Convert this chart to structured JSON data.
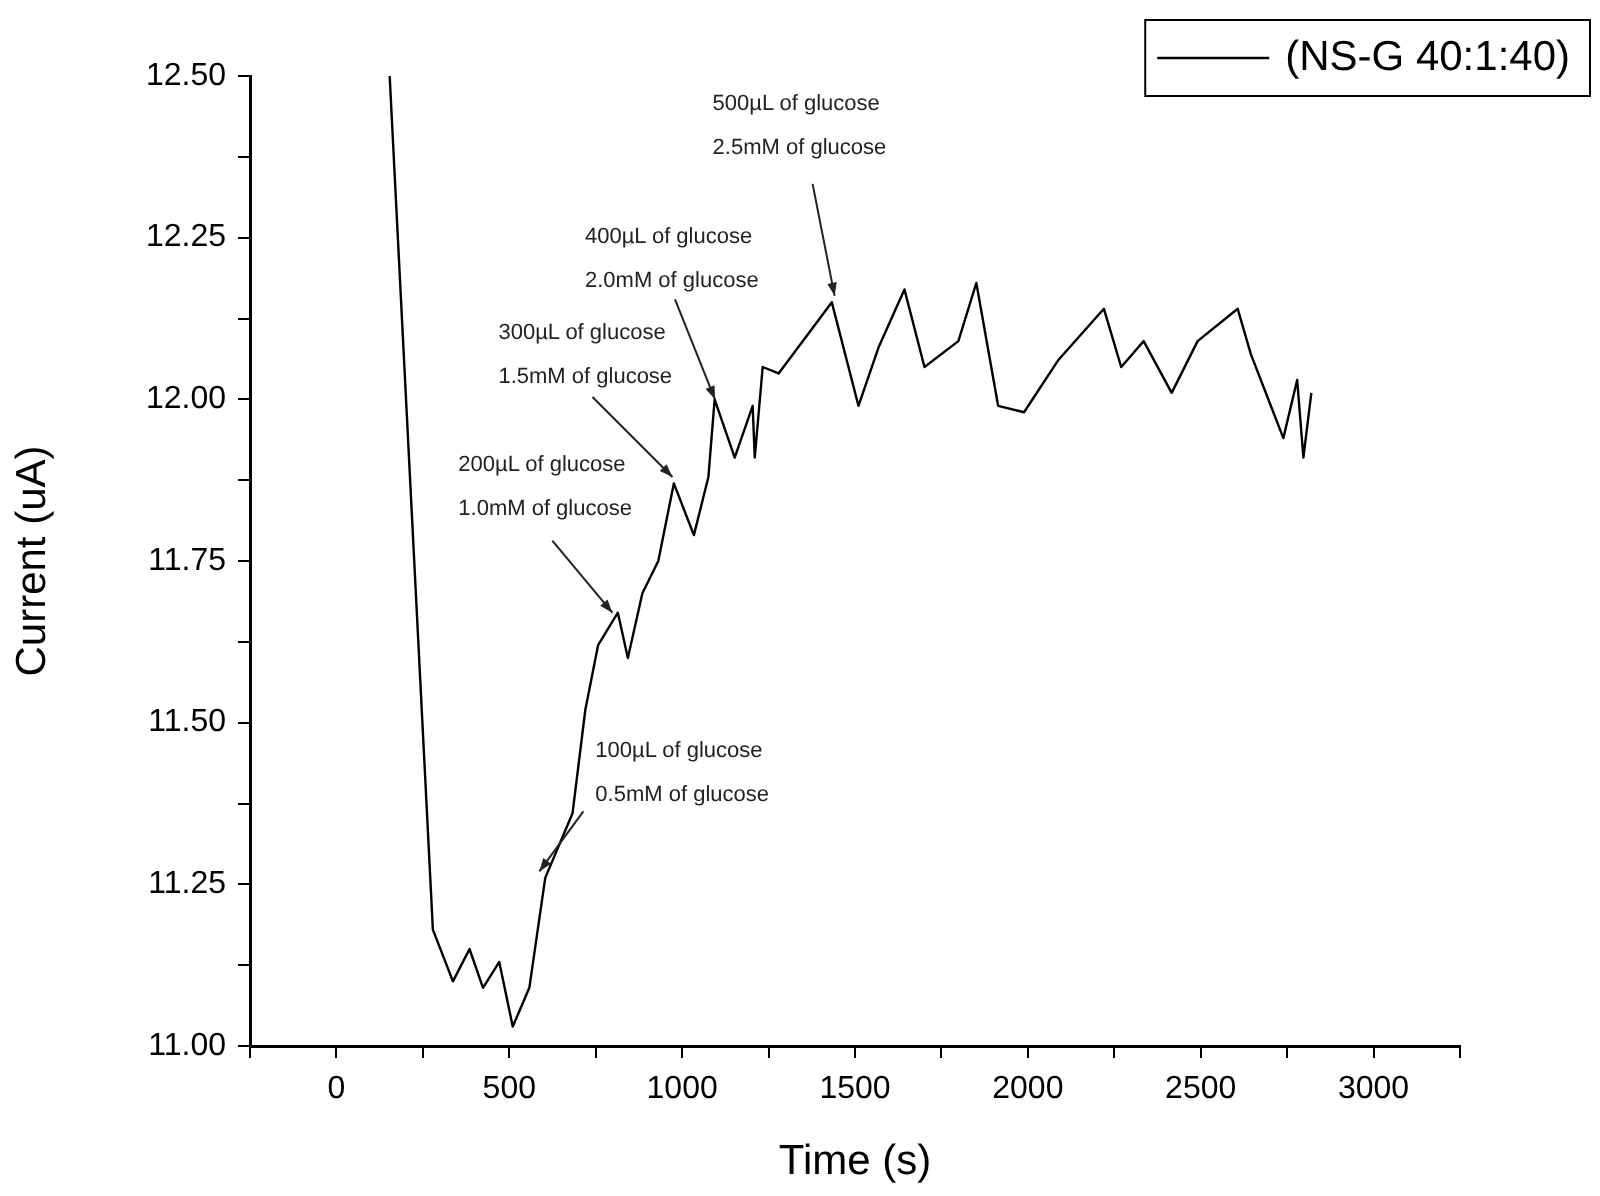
{
  "chart_data": {
    "type": "line",
    "xlabel": "Time (s)",
    "ylabel": "Current (uA)",
    "legend": "top right",
    "grid": false,
    "xlim": [
      -250,
      3250
    ],
    "xticks": [
      {
        "value": -250,
        "label": null
      },
      0,
      {
        "value": 250,
        "label": null
      },
      500,
      {
        "value": 750,
        "label": null
      },
      1000,
      {
        "value": 1250,
        "label": null
      },
      1500,
      {
        "value": 1750,
        "label": null
      },
      2000,
      {
        "value": 2250,
        "label": null
      },
      2500,
      {
        "value": 2750,
        "label": null
      },
      3000,
      {
        "value": 3250,
        "label": null
      }
    ],
    "ylim": [
      11,
      12.5
    ],
    "yticks": [
      {
        "value": 11,
        "label": "11.00"
      },
      {
        "value": 11.125,
        "label": null
      },
      {
        "value": 11.25,
        "label": "11.25"
      },
      {
        "value": 11.375,
        "label": null
      },
      {
        "value": 11.5,
        "label": "11.50"
      },
      {
        "value": 11.625,
        "label": null
      },
      {
        "value": 11.75,
        "label": "11.75"
      },
      {
        "value": 11.875,
        "label": null
      },
      {
        "value": 12,
        "label": "12.00"
      },
      {
        "value": 12.125,
        "label": null
      },
      {
        "value": 12.25,
        "label": "12.25"
      },
      {
        "value": 12.375,
        "label": null
      },
      {
        "value": 12.5,
        "label": "12.50"
      }
    ],
    "series": [
      {
        "name": "(NS-G 40:1:40)",
        "color": "#000000",
        "x": [
          154,
          279,
          337,
          385,
          424,
          471,
          510,
          558,
          604,
          683,
          720,
          757,
          814,
          843,
          885,
          931,
          976,
          1034,
          1076,
          1094,
          1152,
          1204,
          1210,
          1233,
          1279,
          1433,
          1510,
          1568,
          1643,
          1701,
          1799,
          1851,
          1914,
          1989,
          2087,
          2220,
          2270,
          2335,
          2416,
          2491,
          2607,
          2645,
          2739,
          2779,
          2797,
          2820
        ],
        "values": [
          12.5,
          11.18,
          11.1,
          11.15,
          11.09,
          11.13,
          11.03,
          11.09,
          11.26,
          11.36,
          11.52,
          11.62,
          11.67,
          11.6,
          11.7,
          11.75,
          11.87,
          11.79,
          11.88,
          12.0,
          11.91,
          11.99,
          11.91,
          12.05,
          12.04,
          12.15,
          11.99,
          12.08,
          12.17,
          12.05,
          12.09,
          12.18,
          11.99,
          11.98,
          12.06,
          12.14,
          12.05,
          12.09,
          12.01,
          12.09,
          12.14,
          12.07,
          11.94,
          12.03,
          11.91,
          12.01
        ]
      }
    ],
    "annotations": [
      {
        "text": "100µL of glucose\n0.5mM of glucose",
        "x": 587,
        "y": 11.27
      },
      {
        "text": "200µL of glucose\n1.0mM of glucose",
        "x": 798,
        "y": 11.67
      },
      {
        "text": "300µL of glucose\n1.5mM of glucose",
        "x": 972,
        "y": 11.88
      },
      {
        "text": "400µL of glucose\n2.0mM of glucose",
        "x": 1095,
        "y": 12.0
      },
      {
        "text": "500µL of glucose\n2.5mM of glucose",
        "x": 1441,
        "y": 12.16
      }
    ]
  }
}
